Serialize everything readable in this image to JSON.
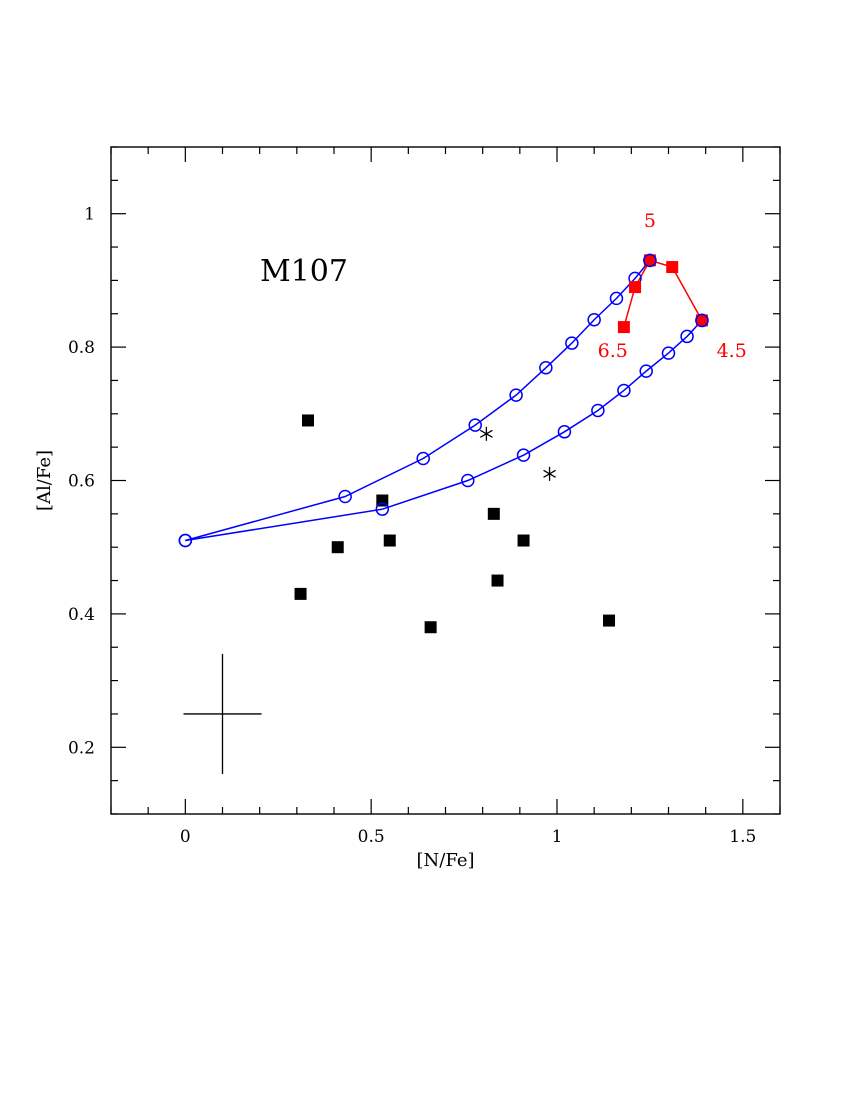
{
  "chart_data": {
    "type": "scatter",
    "xlabel": "[N/Fe]",
    "ylabel": "[Al/Fe]",
    "panel_label": "M107",
    "xlim": [
      -0.2,
      1.6
    ],
    "ylim": [
      0.1,
      1.1
    ],
    "x_ticks": [
      0,
      0.5,
      1,
      1.5
    ],
    "x_tick_labels": [
      "0",
      "0.5",
      "1",
      "1.5"
    ],
    "y_ticks": [
      0.2,
      0.4,
      0.6,
      0.8,
      1.0
    ],
    "y_tick_labels": [
      "0.2",
      "0.4",
      "0.6",
      "0.8",
      "1"
    ],
    "colors": {
      "model": "#0000ff",
      "mass_sequence": "#ff0000",
      "observed": "#000000"
    },
    "series": [
      {
        "style": "black-filled-squares",
        "points": [
          [
            0.33,
            0.69
          ],
          [
            0.53,
            0.57
          ],
          [
            0.41,
            0.5
          ],
          [
            0.55,
            0.51
          ],
          [
            0.31,
            0.43
          ],
          [
            0.66,
            0.38
          ],
          [
            0.83,
            0.55
          ],
          [
            0.91,
            0.51
          ],
          [
            0.84,
            0.45
          ],
          [
            1.14,
            0.39
          ]
        ]
      },
      {
        "style": "black-asterisks",
        "points": [
          [
            0.81,
            0.67
          ],
          [
            0.98,
            0.61
          ]
        ]
      },
      {
        "style": "blue-open-circles-line",
        "points": [
          [
            0.0,
            0.51
          ],
          [
            0.43,
            0.576
          ],
          [
            0.64,
            0.633
          ],
          [
            0.78,
            0.683
          ],
          [
            0.89,
            0.728
          ],
          [
            0.97,
            0.769
          ],
          [
            1.04,
            0.806
          ],
          [
            1.1,
            0.841
          ],
          [
            1.16,
            0.873
          ],
          [
            1.21,
            0.903
          ],
          [
            1.25,
            0.93
          ]
        ]
      },
      {
        "style": "blue-open-circles-line",
        "points": [
          [
            0.0,
            0.51
          ],
          [
            0.53,
            0.557
          ],
          [
            0.76,
            0.6
          ],
          [
            0.91,
            0.638
          ],
          [
            1.02,
            0.673
          ],
          [
            1.11,
            0.705
          ],
          [
            1.18,
            0.735
          ],
          [
            1.24,
            0.764
          ],
          [
            1.3,
            0.791
          ],
          [
            1.35,
            0.816
          ],
          [
            1.39,
            0.84
          ]
        ]
      },
      {
        "style": "red-filled-squares-line",
        "points": [
          [
            1.18,
            0.83
          ],
          [
            1.21,
            0.89
          ],
          [
            1.25,
            0.93
          ],
          [
            1.31,
            0.92
          ],
          [
            1.39,
            0.84
          ]
        ]
      }
    ],
    "annotations": [
      {
        "text": "5",
        "x": 1.25,
        "y": 0.98
      },
      {
        "text": "6.5",
        "x": 1.15,
        "y": 0.785
      },
      {
        "text": "4.5",
        "x": 1.47,
        "y": 0.785
      }
    ],
    "error_bar": {
      "x": 0.1,
      "y": 0.25,
      "x_err": 0.105,
      "y_err": 0.09
    }
  }
}
